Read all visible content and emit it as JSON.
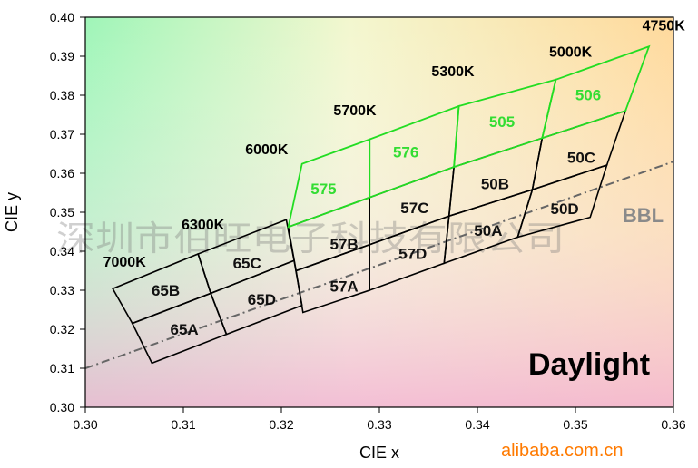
{
  "chart_data": {
    "type": "scatter",
    "xlabel": "CIE x",
    "ylabel": "CIE y",
    "xlim": [
      0.3,
      0.36
    ],
    "ylim": [
      0.3,
      0.4
    ],
    "x_ticks": [
      "0.30",
      "0.31",
      "0.32",
      "0.33",
      "0.34",
      "0.35",
      "0.36"
    ],
    "y_ticks": [
      "0.30",
      "0.31",
      "0.32",
      "0.33",
      "0.34",
      "0.35",
      "0.36",
      "0.37",
      "0.38",
      "0.39",
      "0.40"
    ],
    "bbl": {
      "label": "BBL",
      "from": [
        0.3,
        0.31
      ],
      "to": [
        0.36,
        0.363
      ]
    },
    "black_bins": [
      {
        "label": "65B",
        "corners": [
          [
            0.3028,
            0.3304
          ],
          [
            0.3115,
            0.3393
          ],
          [
            0.3128,
            0.3292
          ],
          [
            0.3048,
            0.3215
          ]
        ],
        "label_at": [
          0.3082,
          0.33
        ]
      },
      {
        "label": "65A",
        "corners": [
          [
            0.3048,
            0.3215
          ],
          [
            0.3128,
            0.3292
          ],
          [
            0.3144,
            0.3187
          ],
          [
            0.3068,
            0.3113
          ]
        ],
        "label_at": [
          0.3101,
          0.32
        ]
      },
      {
        "label": "65C",
        "corners": [
          [
            0.3115,
            0.3393
          ],
          [
            0.3205,
            0.3481
          ],
          [
            0.3213,
            0.3376
          ],
          [
            0.3128,
            0.3292
          ]
        ],
        "label_at": [
          0.3165,
          0.337
        ]
      },
      {
        "label": "65D",
        "corners": [
          [
            0.3128,
            0.3292
          ],
          [
            0.3213,
            0.3376
          ],
          [
            0.3221,
            0.3261
          ],
          [
            0.3144,
            0.3187
          ]
        ],
        "label_at": [
          0.318,
          0.3277
        ]
      },
      {
        "label": "57B",
        "corners": [
          [
            0.3207,
            0.3462
          ],
          [
            0.329,
            0.3538
          ],
          [
            0.329,
            0.3417
          ],
          [
            0.3215,
            0.335
          ]
        ],
        "label_at": [
          0.3264,
          0.3419
        ]
      },
      {
        "label": "57A",
        "corners": [
          [
            0.3215,
            0.335
          ],
          [
            0.329,
            0.3417
          ],
          [
            0.329,
            0.33
          ],
          [
            0.3222,
            0.3243
          ]
        ],
        "label_at": [
          0.3264,
          0.3311
        ]
      },
      {
        "label": "57C",
        "corners": [
          [
            0.329,
            0.3538
          ],
          [
            0.3376,
            0.3616
          ],
          [
            0.3371,
            0.349
          ],
          [
            0.329,
            0.3417
          ]
        ],
        "label_at": [
          0.3336,
          0.3512
        ]
      },
      {
        "label": "57D",
        "corners": [
          [
            0.329,
            0.3417
          ],
          [
            0.3371,
            0.349
          ],
          [
            0.3366,
            0.3369
          ],
          [
            0.329,
            0.33
          ]
        ],
        "label_at": [
          0.3334,
          0.3394
        ]
      },
      {
        "label": "50B",
        "corners": [
          [
            0.3376,
            0.3616
          ],
          [
            0.3466,
            0.369
          ],
          [
            0.3456,
            0.3558
          ],
          [
            0.3371,
            0.349
          ]
        ],
        "label_at": [
          0.3418,
          0.3573
        ]
      },
      {
        "label": "50A",
        "corners": [
          [
            0.3371,
            0.349
          ],
          [
            0.3456,
            0.3558
          ],
          [
            0.3441,
            0.3436
          ],
          [
            0.3366,
            0.3369
          ]
        ],
        "label_at": [
          0.3411,
          0.3453
        ]
      },
      {
        "label": "50C",
        "corners": [
          [
            0.3466,
            0.369
          ],
          [
            0.3551,
            0.376
          ],
          [
            0.3532,
            0.3621
          ],
          [
            0.3456,
            0.3558
          ]
        ],
        "label_at": [
          0.3506,
          0.3641
        ]
      },
      {
        "label": "50D",
        "corners": [
          [
            0.3456,
            0.3558
          ],
          [
            0.3532,
            0.3621
          ],
          [
            0.3515,
            0.3487
          ],
          [
            0.3441,
            0.3436
          ]
        ],
        "label_at": [
          0.3489,
          0.3509
        ]
      }
    ],
    "green_bins": [
      {
        "label": "575",
        "corners": [
          [
            0.3207,
            0.3462
          ],
          [
            0.329,
            0.3538
          ],
          [
            0.329,
            0.3687
          ],
          [
            0.3221,
            0.3624
          ]
        ],
        "label_at": [
          0.3243,
          0.356
        ]
      },
      {
        "label": "576",
        "corners": [
          [
            0.329,
            0.3538
          ],
          [
            0.3376,
            0.3616
          ],
          [
            0.3381,
            0.3772
          ],
          [
            0.329,
            0.3687
          ]
        ],
        "label_at": [
          0.3327,
          0.3655
        ]
      },
      {
        "label": "505",
        "corners": [
          [
            0.3376,
            0.3616
          ],
          [
            0.3466,
            0.369
          ],
          [
            0.348,
            0.384
          ],
          [
            0.3381,
            0.3772
          ]
        ],
        "label_at": [
          0.3425,
          0.3732
        ]
      },
      {
        "label": "506",
        "corners": [
          [
            0.3466,
            0.369
          ],
          [
            0.3551,
            0.376
          ],
          [
            0.3575,
            0.3925
          ],
          [
            0.348,
            0.384
          ]
        ],
        "label_at": [
          0.3513,
          0.3801
        ]
      }
    ],
    "cct_labels": [
      {
        "label": "7000K",
        "at": [
          0.304,
          0.3372
        ]
      },
      {
        "label": "6300K",
        "at": [
          0.312,
          0.3468
        ]
      },
      {
        "label": "6000K",
        "at": [
          0.3185,
          0.366
        ]
      },
      {
        "label": "5700K",
        "at": [
          0.3275,
          0.376
        ]
      },
      {
        "label": "5300K",
        "at": [
          0.3375,
          0.386
        ]
      },
      {
        "label": "5000K",
        "at": [
          0.3495,
          0.391
        ]
      },
      {
        "label": "4750K",
        "at": [
          0.359,
          0.3978
        ]
      }
    ],
    "annotations": {
      "region_label": "Daylight"
    },
    "colors": {
      "green_boundary": "#22dd22",
      "black_boundary": "#000000",
      "bbl_line": "#666666"
    }
  },
  "overlays": {
    "watermark": "深圳市伯旺电子科技有限公司",
    "site_mark": "alibaba.com.cn"
  }
}
